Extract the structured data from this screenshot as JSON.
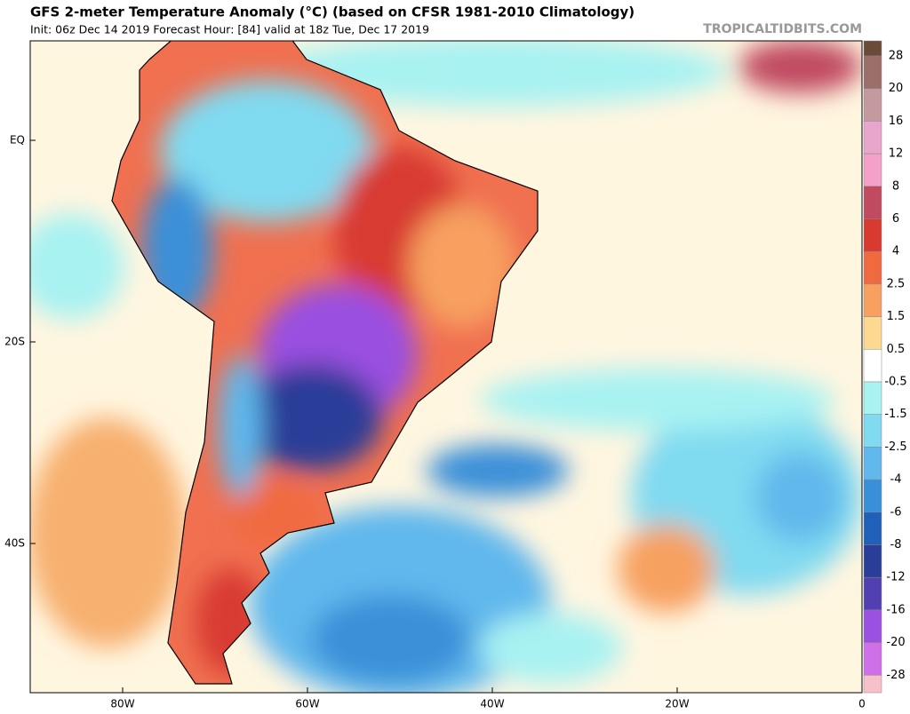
{
  "header": {
    "title": "GFS 2-meter Temperature Anomaly (°C) (based on CFSR 1981-2010 Climatology)",
    "subtitle": "Init: 06z Dec 14 2019   Forecast Hour: [84]   valid at 18z Tue, Dec 17 2019",
    "credit": "TROPICALTIDBITS.COM"
  },
  "map": {
    "lat_labels": [
      "EQ",
      "20S",
      "40S"
    ],
    "lon_labels": [
      "80W",
      "60W",
      "40W",
      "20W",
      "0"
    ]
  },
  "colorbar": {
    "labels": [
      "28",
      "20",
      "16",
      "12",
      "8",
      "6",
      "4",
      "2.5",
      "1.5",
      "0.5",
      "-0.5",
      "-1.5",
      "-2.5",
      "-4",
      "-6",
      "-8",
      "-12",
      "-16",
      "-20",
      "-28"
    ],
    "colors": [
      "#6b4a3a",
      "#9c6e6a",
      "#c49a9e",
      "#e8a6cc",
      "#f4a0c8",
      "#c04a60",
      "#d83a30",
      "#f06a40",
      "#f7a060",
      "#fcd890",
      "#ffffff",
      "#a8f2f2",
      "#80daf0",
      "#60b8ec",
      "#3a90d8",
      "#2060b8",
      "#2a3e98",
      "#5040b0",
      "#9a50e0",
      "#d070e8",
      "#f8c0c8"
    ]
  }
}
